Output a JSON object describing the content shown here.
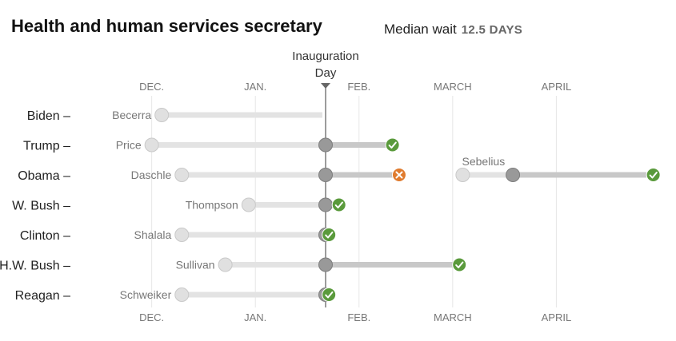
{
  "header": {
    "title": "Health and human services secretary",
    "median_label": "Median wait",
    "median_value": "12.5 DAYS"
  },
  "colors": {
    "track": "#e3e3e3",
    "wait_bar": "#c8c8c8",
    "start_dot": "#e0e0e0",
    "inauguration_dot": "#999999",
    "confirmed": "#5a9a3c",
    "withdrawn": "#e07b2e",
    "gridline": "#e6e6e6",
    "inauguration_line": "#666666"
  },
  "chart_data": {
    "type": "timeline",
    "annotation": "Inauguration Day",
    "axis_ticks": [
      "DEC.",
      "JAN.",
      "FEB.",
      "MARCH",
      "APRIL"
    ],
    "units": "days relative to Inauguration Day",
    "rows": [
      {
        "president": "Biden",
        "nominees": [
          {
            "name": "Becerra",
            "announced": -49,
            "outcome": "pending"
          }
        ]
      },
      {
        "president": "Trump",
        "nominees": [
          {
            "name": "Price",
            "announced": -52,
            "outcome": "confirmed",
            "end": 20
          }
        ]
      },
      {
        "president": "Obama",
        "nominees": [
          {
            "name": "Daschle",
            "announced": -43,
            "outcome": "withdrawn",
            "end": 22
          },
          {
            "name": "Sebelius",
            "announced": 41,
            "nominated": 56,
            "outcome": "confirmed",
            "end": 98
          }
        ]
      },
      {
        "president": "W. Bush",
        "nominees": [
          {
            "name": "Thompson",
            "announced": -23,
            "outcome": "confirmed",
            "end": 4
          }
        ]
      },
      {
        "president": "Clinton",
        "nominees": [
          {
            "name": "Shalala",
            "announced": -43,
            "outcome": "confirmed",
            "end": 1
          }
        ]
      },
      {
        "president": "H.W. Bush",
        "nominees": [
          {
            "name": "Sullivan",
            "announced": -30,
            "outcome": "confirmed",
            "end": 40
          }
        ]
      },
      {
        "president": "Reagan",
        "nominees": [
          {
            "name": "Schweiker",
            "announced": -43,
            "outcome": "confirmed",
            "end": 1
          }
        ]
      }
    ]
  }
}
